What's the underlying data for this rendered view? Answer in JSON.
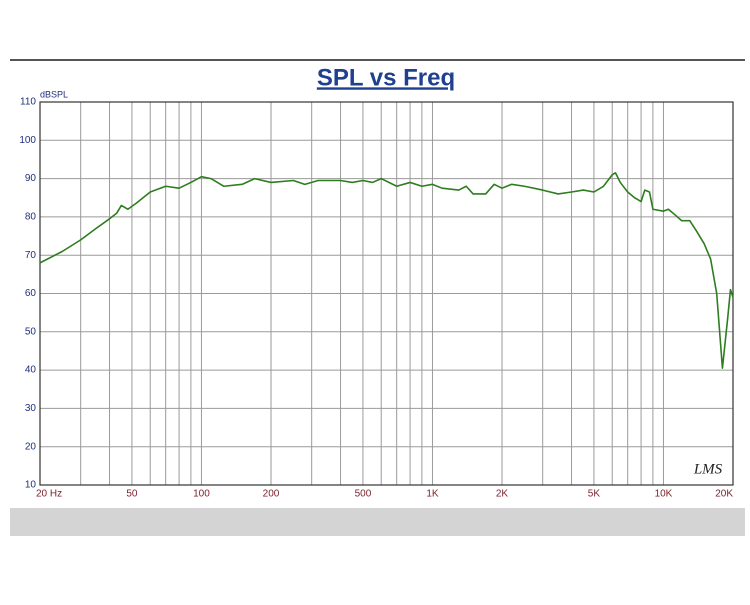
{
  "chart_data": {
    "type": "line",
    "title": "SPL vs Freq",
    "ylabel": "dBSPL",
    "logo": "LMS",
    "xscale": "log",
    "grid": true,
    "xlim": [
      20,
      20000
    ],
    "ylim": [
      10,
      110
    ],
    "xticks": [
      {
        "value": 20,
        "label": "20 Hz"
      },
      50,
      100,
      200,
      500,
      {
        "value": 1000,
        "label": "1K"
      },
      {
        "value": 2000,
        "label": "2K"
      },
      {
        "value": 5000,
        "label": "5K"
      },
      {
        "value": 10000,
        "label": "10K"
      },
      {
        "value": 20000,
        "label": "20K"
      }
    ],
    "xminor_ticks": [
      30,
      40,
      60,
      70,
      80,
      90,
      300,
      400,
      600,
      700,
      800,
      900,
      3000,
      4000,
      6000,
      7000,
      8000,
      9000
    ],
    "yticks": [
      10,
      20,
      30,
      40,
      50,
      60,
      70,
      80,
      90,
      100,
      110
    ],
    "x": [
      20,
      25,
      30,
      35,
      40,
      43,
      45,
      48,
      52,
      60,
      70,
      80,
      90,
      100,
      110,
      125,
      150,
      170,
      200,
      250,
      280,
      320,
      400,
      450,
      500,
      550,
      600,
      700,
      800,
      900,
      1000,
      1100,
      1300,
      1400,
      1500,
      1700,
      1850,
      2000,
      2200,
      2500,
      3000,
      3500,
      4000,
      4500,
      5000,
      5500,
      6000,
      6200,
      6500,
      7000,
      7500,
      8000,
      8300,
      8700,
      9000,
      10000,
      10500,
      11000,
      12000,
      13000,
      14000,
      15000,
      16000,
      17000,
      18000,
      19000,
      19500,
      20000
    ],
    "series": [
      {
        "name": "SPL",
        "color": "#2e7d1e",
        "values": [
          68,
          71,
          74,
          77,
          79.5,
          81,
          83,
          82,
          83.5,
          86.5,
          88,
          87.5,
          89,
          90.5,
          90,
          88,
          88.5,
          90,
          89,
          89.5,
          88.5,
          89.5,
          89.5,
          89,
          89.5,
          89,
          90,
          88,
          89,
          88,
          88.5,
          87.5,
          87,
          88,
          86,
          86,
          88.5,
          87.5,
          88.5,
          88,
          87,
          86,
          86.5,
          87,
          86.5,
          88,
          91,
          91.5,
          89,
          86.5,
          85,
          84,
          87,
          86.5,
          82,
          81.5,
          82,
          81,
          79,
          79,
          76,
          73,
          69,
          60,
          40.5,
          54,
          61,
          59
        ]
      }
    ]
  }
}
